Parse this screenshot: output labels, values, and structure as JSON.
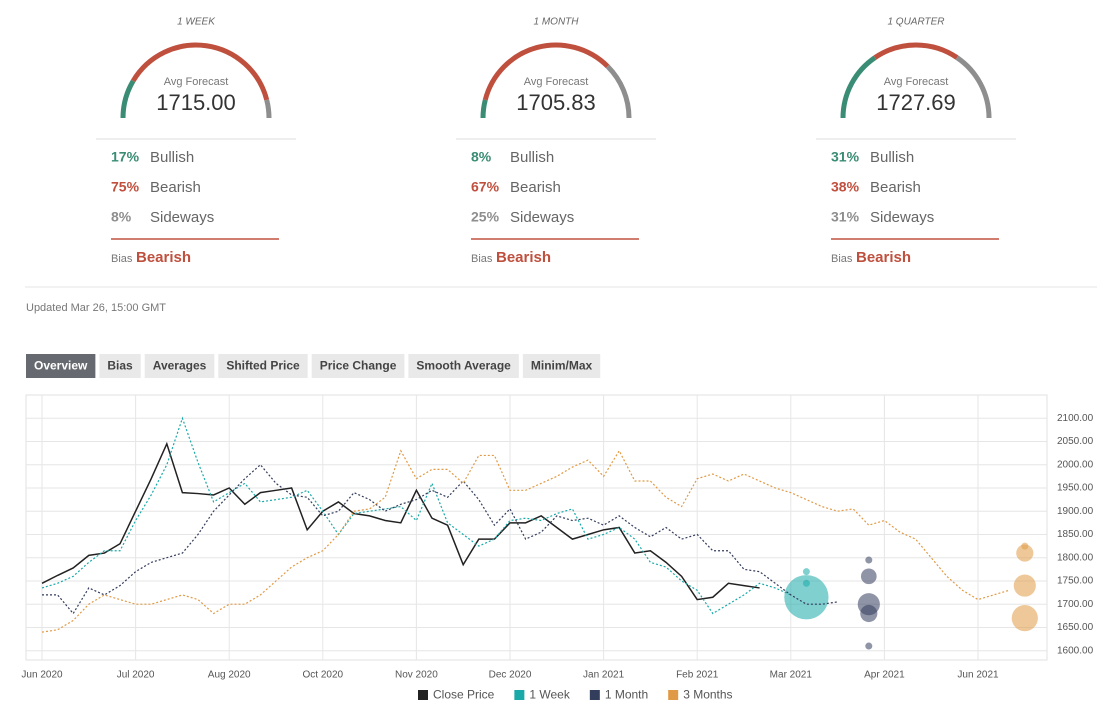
{
  "gauges": [
    {
      "period": "1 WEEK",
      "value": "1715.00",
      "bullish": {
        "value": 17,
        "label": "17%"
      },
      "bearish": {
        "value": 75,
        "label": "75%"
      },
      "sideways": {
        "value": 8,
        "label": "8%"
      },
      "bias": "Bearish"
    },
    {
      "period": "1 MONTH",
      "value": "1705.83",
      "bullish": {
        "value": 8,
        "label": "8%"
      },
      "bearish": {
        "value": 67,
        "label": "67%"
      },
      "sideways": {
        "value": 25,
        "label": "25%"
      },
      "bias": "Bearish"
    },
    {
      "period": "1 QUARTER",
      "value": "1727.69",
      "bullish": {
        "value": 31,
        "label": "31%"
      },
      "bearish": {
        "value": 38,
        "label": "38%"
      },
      "sideways": {
        "value": 31,
        "label": "31%"
      },
      "bias": "Bearish"
    }
  ],
  "labels": {
    "caption": "Avg Forecast",
    "bullish": "Bullish",
    "bearish": "Bearish",
    "sideways": "Sideways",
    "bias": "Bias"
  },
  "updated": "Updated Mar 26, 15:00 GMT",
  "tabs": [
    "Overview",
    "Bias",
    "Averages",
    "Shifted Price",
    "Price Change",
    "Smooth Average",
    "Minim/Max"
  ],
  "chart_data": {
    "type": "line",
    "categories": [
      "Jun 2020",
      null,
      null,
      null,
      null,
      null,
      "Jul 2020",
      null,
      null,
      null,
      null,
      null,
      "Aug 2020",
      null,
      null,
      null,
      null,
      null,
      "Oct 2020",
      null,
      null,
      null,
      null,
      null,
      "Nov 2020",
      null,
      null,
      null,
      null,
      null,
      "Dec 2020",
      null,
      null,
      null,
      null,
      null,
      "Jan 2021",
      null,
      null,
      null,
      null,
      null,
      "Feb 2021",
      null,
      null,
      null,
      null,
      null,
      "Mar 2021",
      null,
      null,
      null,
      null,
      null,
      "Apr 2021",
      null,
      null,
      null,
      null,
      null,
      "Jun 2021",
      null,
      null,
      null,
      null
    ],
    "series": [
      {
        "name": "Close Price",
        "color": "#222222",
        "dashed": false,
        "values": [
          1745,
          1762,
          1778,
          1805,
          1810,
          1830,
          1900,
          1970,
          2045,
          1940,
          1938,
          1935,
          1950,
          1915,
          1940,
          1945,
          1950,
          1860,
          1900,
          1920,
          1895,
          1890,
          1880,
          1875,
          1945,
          1885,
          1870,
          1785,
          1840,
          1840,
          1875,
          1875,
          1890,
          1865,
          1840,
          1850,
          1860,
          1865,
          1810,
          1815,
          1790,
          1760,
          1710,
          1715,
          1745,
          1740,
          1735,
          null,
          null,
          null,
          null,
          null,
          null,
          null,
          null,
          null,
          null,
          null,
          null,
          null,
          null,
          null,
          null,
          null,
          null
        ]
      },
      {
        "name": "1 Week",
        "color": "#1aa9a9",
        "dashed": true,
        "values": [
          1735,
          1745,
          1760,
          1790,
          1815,
          1815,
          1880,
          1935,
          2000,
          2100,
          2005,
          1920,
          1940,
          1960,
          1920,
          1925,
          1930,
          1945,
          1900,
          1850,
          1895,
          1900,
          1905,
          1910,
          1880,
          1960,
          1875,
          1850,
          1825,
          1840,
          1880,
          1885,
          1880,
          1895,
          1905,
          1840,
          1850,
          1865,
          1840,
          1790,
          1780,
          1750,
          1730,
          1680,
          1700,
          1720,
          1745,
          1735,
          1720,
          null,
          null,
          null,
          null,
          null,
          null,
          null,
          null,
          null,
          null,
          null,
          null,
          null,
          null,
          null,
          null
        ],
        "forecast": {
          "category": 49,
          "values": [
            1715,
            1770,
            1745
          ],
          "sizes": [
            40,
            1,
            1
          ]
        }
      },
      {
        "name": "1 Month",
        "color": "#333d5c",
        "dashed": true,
        "values": [
          1720,
          1720,
          1680,
          1735,
          1720,
          1740,
          1770,
          1790,
          1800,
          1810,
          1850,
          1900,
          1935,
          1970,
          2000,
          1960,
          1935,
          1930,
          1890,
          1900,
          1940,
          1925,
          1900,
          1915,
          1925,
          1945,
          1930,
          1965,
          1925,
          1870,
          1905,
          1840,
          1855,
          1890,
          1880,
          1885,
          1870,
          1890,
          1865,
          1845,
          1865,
          1840,
          1850,
          1815,
          1815,
          1775,
          1770,
          1745,
          1720,
          1700,
          1700,
          1705,
          null,
          null,
          null,
          null,
          null,
          null,
          null,
          null,
          null,
          null,
          null,
          null,
          null
        ],
        "forecast": {
          "category": 53,
          "values": [
            1795,
            1760,
            1700,
            1680,
            1610
          ],
          "sizes": [
            1,
            5,
            10,
            6,
            1
          ]
        }
      },
      {
        "name": "3 Months",
        "color": "#e09a45",
        "dashed": true,
        "values": [
          1640,
          1645,
          1665,
          1700,
          1720,
          1710,
          1700,
          1700,
          1710,
          1720,
          1710,
          1680,
          1700,
          1700,
          1720,
          1750,
          1780,
          1800,
          1815,
          1850,
          1900,
          1905,
          1930,
          2030,
          1970,
          1990,
          1990,
          1960,
          2020,
          2020,
          1945,
          1945,
          1960,
          1975,
          1995,
          2010,
          1975,
          2030,
          1965,
          1965,
          1930,
          1910,
          1970,
          1980,
          1965,
          1980,
          1965,
          1950,
          1940,
          1925,
          1910,
          1900,
          1905,
          1870,
          1880,
          1855,
          1840,
          1800,
          1760,
          1730,
          1710,
          1720,
          1730,
          null,
          null
        ],
        "forecast": {
          "category": 63,
          "values": [
            1825,
            1810,
            1740,
            1670
          ],
          "sizes": [
            1,
            6,
            10,
            14
          ]
        }
      }
    ],
    "ylim": [
      1580,
      2150
    ],
    "yticks": [
      {
        "value": 1600,
        "label": "1600.00"
      },
      {
        "value": 1650,
        "label": "1650.00"
      },
      {
        "value": 1700,
        "label": "1700.00"
      },
      {
        "value": 1750,
        "label": "1750.00"
      },
      {
        "value": 1800,
        "label": "1800.00"
      },
      {
        "value": 1850,
        "label": "1850.00"
      },
      {
        "value": 1900,
        "label": "1900.00"
      },
      {
        "value": 1950,
        "label": "1950.00"
      },
      {
        "value": 2000,
        "label": "2000.00"
      },
      {
        "value": 2050,
        "label": "2050.00"
      },
      {
        "value": 2100,
        "label": "2100.00"
      }
    ],
    "grid": true,
    "legend": "bottom"
  }
}
